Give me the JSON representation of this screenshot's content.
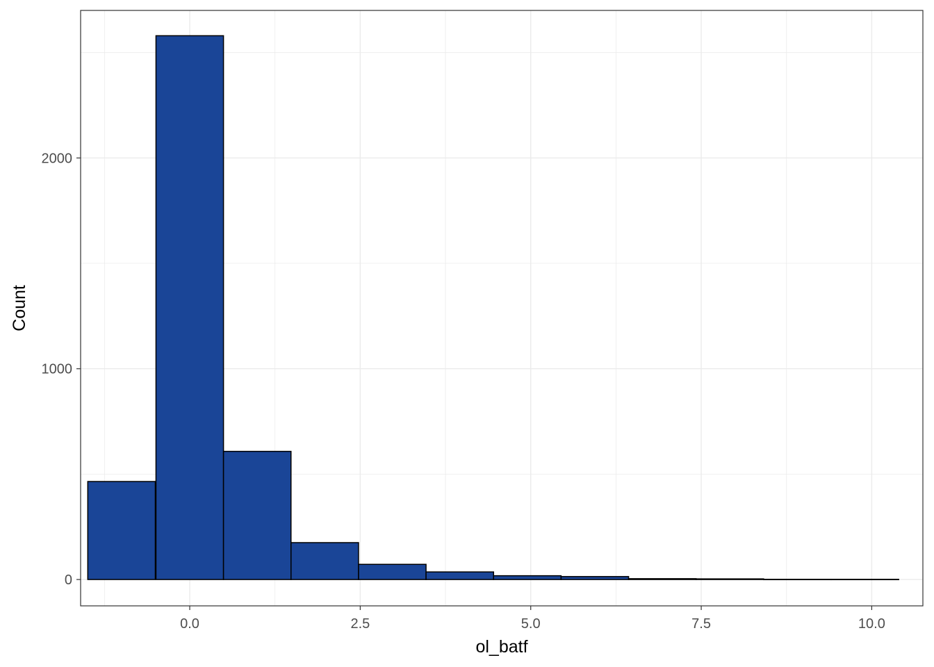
{
  "chart_data": {
    "type": "bar",
    "subtype": "histogram",
    "title": "",
    "xlabel": "ol_batf",
    "ylabel": "Count",
    "xlim": [
      -1.6,
      10.75
    ],
    "ylim": [
      -125,
      2700
    ],
    "x_ticks": [
      0.0,
      2.5,
      5.0,
      7.5,
      10.0
    ],
    "x_tick_labels": [
      "0.0",
      "2.5",
      "5.0",
      "7.5",
      "10.0"
    ],
    "x_minor_ticks": [
      -1.25,
      1.25,
      3.75,
      6.25,
      8.75
    ],
    "y_ticks": [
      0,
      1000,
      2000
    ],
    "y_tick_labels": [
      "0",
      "1000",
      "2000"
    ],
    "y_minor_ticks": [
      500,
      1500,
      2500
    ],
    "bin_width": 0.99,
    "bins": [
      {
        "x": -1.0,
        "count": 465
      },
      {
        "x": 0.0,
        "count": 2580
      },
      {
        "x": 0.99,
        "count": 608
      },
      {
        "x": 1.98,
        "count": 175
      },
      {
        "x": 2.97,
        "count": 72
      },
      {
        "x": 3.96,
        "count": 36
      },
      {
        "x": 4.95,
        "count": 18
      },
      {
        "x": 5.94,
        "count": 14
      },
      {
        "x": 6.93,
        "count": 4
      },
      {
        "x": 7.92,
        "count": 3
      },
      {
        "x": 8.91,
        "count": 1
      },
      {
        "x": 9.9,
        "count": 1
      }
    ],
    "colors": {
      "fill": "#1a4597",
      "outline": "#000000",
      "grid": "#ebebeb",
      "panel_border": "#333333",
      "background": "#ffffff"
    },
    "grid": true,
    "legend": "none"
  }
}
